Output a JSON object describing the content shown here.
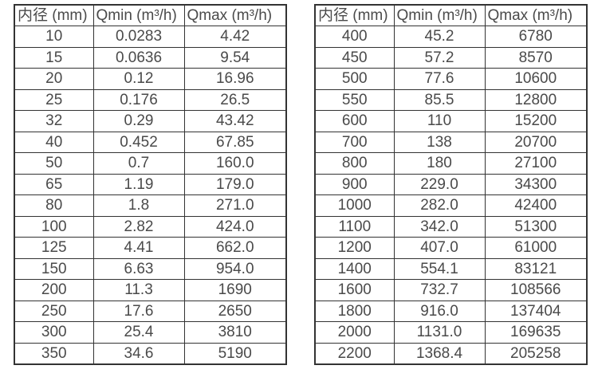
{
  "page": {
    "background": "#ffffff",
    "text_color": "#4a4a4a",
    "border_color": "#333333"
  },
  "tables": [
    {
      "columns": [
        "内径 (mm)",
        "Qmin (m³/h)",
        "Qmax (m³/h)"
      ],
      "rows": [
        [
          "10",
          "0.0283",
          "4.42"
        ],
        [
          "15",
          "0.0636",
          "9.54"
        ],
        [
          "20",
          "0.12",
          "16.96"
        ],
        [
          "25",
          "0.176",
          "26.5"
        ],
        [
          "32",
          "0.29",
          "43.42"
        ],
        [
          "40",
          "0.452",
          "67.85"
        ],
        [
          "50",
          "0.7",
          "160.0"
        ],
        [
          "65",
          "1.19",
          "179.0"
        ],
        [
          "80",
          "1.8",
          "271.0"
        ],
        [
          "100",
          "2.82",
          "424.0"
        ],
        [
          "125",
          "4.41",
          "662.0"
        ],
        [
          "150",
          "6.63",
          "954.0"
        ],
        [
          "200",
          "11.3",
          "1690"
        ],
        [
          "250",
          "17.6",
          "2650"
        ],
        [
          "300",
          "25.4",
          "3810"
        ],
        [
          "350",
          "34.6",
          "5190"
        ]
      ]
    },
    {
      "columns": [
        "内径 (mm)",
        "Qmin (m³/h)",
        "Qmax (m³/h)"
      ],
      "rows": [
        [
          "400",
          "45.2",
          "6780"
        ],
        [
          "450",
          "57.2",
          "8570"
        ],
        [
          "500",
          "77.6",
          "10600"
        ],
        [
          "550",
          "85.5",
          "12800"
        ],
        [
          "600",
          "110",
          "15200"
        ],
        [
          "700",
          "138",
          "20700"
        ],
        [
          "800",
          "180",
          "27100"
        ],
        [
          "900",
          "229.0",
          "34300"
        ],
        [
          "1000",
          "282.0",
          "42400"
        ],
        [
          "1100",
          "342.0",
          "51300"
        ],
        [
          "1200",
          "407.0",
          "61000"
        ],
        [
          "1400",
          "554.1",
          "83121"
        ],
        [
          "1600",
          "732.7",
          "108566"
        ],
        [
          "1800",
          "916.0",
          "137404"
        ],
        [
          "2000",
          "1131.0",
          "169635"
        ],
        [
          "2200",
          "1368.4",
          "205258"
        ]
      ]
    }
  ]
}
